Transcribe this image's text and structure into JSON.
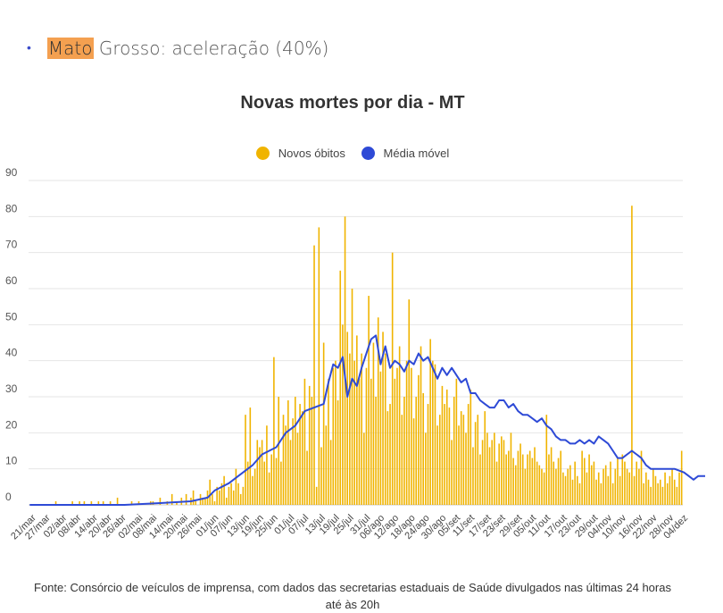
{
  "header": {
    "bullet": "•",
    "highlight": "Mato",
    "rest": " Grosso: aceleração (40%)"
  },
  "chart_data": {
    "type": "bar",
    "title": "Novas mortes por dia - MT",
    "ylim": [
      0,
      90
    ],
    "yticks": [
      0,
      10,
      20,
      30,
      40,
      50,
      60,
      70,
      80,
      90
    ],
    "grid": true,
    "legend_placement": "top-center",
    "xlabel": "",
    "ylabel": "",
    "x_tick_labels": [
      "21/mar",
      "27/mar",
      "02/abr",
      "08/abr",
      "14/abr",
      "20/abr",
      "26/abr",
      "02/mai",
      "08/mai",
      "14/mai",
      "20/mai",
      "26/mai",
      "01/jun",
      "07/jun",
      "13/jun",
      "19/jun",
      "25/jun",
      "01/jul",
      "07/jul",
      "13/jul",
      "19/jul",
      "25/jul",
      "31/jul",
      "06/ago",
      "12/ago",
      "18/ago",
      "24/ago",
      "30/ago",
      "05/set",
      "11/set",
      "17/set",
      "23/set",
      "29/set",
      "05/out",
      "11/out",
      "17/out",
      "23/out",
      "29/out",
      "04/nov",
      "10/nov",
      "16/nov",
      "22/nov",
      "28/nov",
      "04/dez"
    ],
    "series": [
      {
        "name": "Novos óbitos",
        "kind": "bar",
        "color": "#f0b400",
        "values": [
          0,
          0,
          0,
          0,
          0,
          0,
          0,
          0,
          0,
          0,
          0,
          1,
          0,
          0,
          0,
          0,
          0,
          0,
          1,
          0,
          0,
          1,
          0,
          1,
          0,
          0,
          1,
          0,
          0,
          1,
          0,
          1,
          0,
          0,
          1,
          0,
          0,
          2,
          0,
          0,
          0,
          0,
          0,
          1,
          0,
          0,
          1,
          0,
          0,
          0,
          0,
          1,
          1,
          0,
          0,
          2,
          0,
          0,
          1,
          0,
          3,
          0,
          1,
          0,
          2,
          0,
          3,
          0,
          2,
          4,
          1,
          0,
          3,
          2,
          2,
          4,
          7,
          3,
          1,
          5,
          4,
          6,
          8,
          2,
          5,
          6,
          4,
          10,
          6,
          3,
          5,
          25,
          12,
          27,
          8,
          10,
          18,
          16,
          18,
          12,
          22,
          9,
          14,
          41,
          13,
          30,
          12,
          25,
          22,
          29,
          18,
          24,
          30,
          20,
          28,
          26,
          35,
          15,
          33,
          30,
          72,
          5,
          77,
          16,
          45,
          22,
          35,
          18,
          38,
          40,
          29,
          65,
          50,
          80,
          48,
          42,
          60,
          40,
          47,
          35,
          42,
          20,
          38,
          58,
          35,
          45,
          30,
          52,
          37,
          48,
          42,
          26,
          28,
          70,
          35,
          38,
          44,
          25,
          30,
          40,
          57,
          38,
          24,
          30,
          36,
          44,
          31,
          20,
          28,
          46,
          40,
          39,
          22,
          25,
          33,
          28,
          32,
          27,
          18,
          30,
          35,
          22,
          26,
          25,
          20,
          28,
          32,
          16,
          23,
          25,
          14,
          18,
          26,
          20,
          16,
          18,
          20,
          12,
          17,
          19,
          18,
          14,
          15,
          20,
          13,
          11,
          15,
          17,
          14,
          10,
          14,
          15,
          13,
          16,
          12,
          11,
          10,
          9,
          25,
          14,
          16,
          12,
          10,
          13,
          15,
          9,
          8,
          10,
          11,
          7,
          12,
          8,
          6,
          15,
          13,
          9,
          14,
          11,
          12,
          7,
          9,
          6,
          10,
          11,
          8,
          12,
          6,
          10,
          13,
          8,
          14,
          12,
          10,
          9,
          83,
          8,
          12,
          10,
          15,
          6,
          9,
          7,
          5,
          10,
          8,
          6,
          7,
          5,
          9,
          6,
          8,
          10,
          7,
          5,
          9,
          15
        ]
      },
      {
        "name": "Média móvel",
        "kind": "line",
        "color": "#2e4ad6",
        "points": [
          [
            0,
            0
          ],
          [
            40,
            0
          ],
          [
            55,
            0.5
          ],
          [
            68,
            1
          ],
          [
            75,
            2
          ],
          [
            78,
            4
          ],
          [
            84,
            6
          ],
          [
            88,
            8
          ],
          [
            94,
            11
          ],
          [
            98,
            14
          ],
          [
            104,
            16
          ],
          [
            108,
            20
          ],
          [
            112,
            22
          ],
          [
            116,
            26
          ],
          [
            120,
            27
          ],
          [
            124,
            28
          ],
          [
            126,
            34
          ],
          [
            128,
            39
          ],
          [
            130,
            38
          ],
          [
            132,
            41
          ],
          [
            134,
            30
          ],
          [
            136,
            35
          ],
          [
            138,
            33
          ],
          [
            140,
            38
          ],
          [
            144,
            46
          ],
          [
            146,
            47
          ],
          [
            148,
            39
          ],
          [
            150,
            44
          ],
          [
            152,
            38
          ],
          [
            154,
            40
          ],
          [
            156,
            39
          ],
          [
            158,
            37
          ],
          [
            160,
            40
          ],
          [
            162,
            39
          ],
          [
            164,
            42
          ],
          [
            166,
            40
          ],
          [
            168,
            41
          ],
          [
            170,
            38
          ],
          [
            172,
            35
          ],
          [
            174,
            38
          ],
          [
            176,
            36
          ],
          [
            178,
            38
          ],
          [
            180,
            36
          ],
          [
            182,
            34
          ],
          [
            184,
            35
          ],
          [
            186,
            31
          ],
          [
            188,
            31
          ],
          [
            190,
            29
          ],
          [
            192,
            28
          ],
          [
            194,
            27
          ],
          [
            196,
            27
          ],
          [
            198,
            29
          ],
          [
            200,
            29
          ],
          [
            202,
            27
          ],
          [
            204,
            28
          ],
          [
            206,
            26
          ],
          [
            208,
            25
          ],
          [
            210,
            25
          ],
          [
            212,
            24
          ],
          [
            214,
            23
          ],
          [
            216,
            24
          ],
          [
            218,
            22
          ],
          [
            220,
            21
          ],
          [
            222,
            19
          ],
          [
            224,
            18
          ],
          [
            226,
            18
          ],
          [
            228,
            17
          ],
          [
            230,
            17
          ],
          [
            232,
            18
          ],
          [
            234,
            17
          ],
          [
            236,
            18
          ],
          [
            238,
            17
          ],
          [
            240,
            19
          ],
          [
            242,
            18
          ],
          [
            244,
            17
          ],
          [
            246,
            15
          ],
          [
            248,
            13
          ],
          [
            250,
            13
          ],
          [
            252,
            14
          ],
          [
            254,
            15
          ],
          [
            256,
            14
          ],
          [
            258,
            13
          ],
          [
            260,
            11
          ],
          [
            262,
            10
          ],
          [
            264,
            10
          ],
          [
            272,
            10
          ],
          [
            276,
            9
          ],
          [
            278,
            8
          ],
          [
            280,
            7
          ],
          [
            282,
            8
          ],
          [
            284,
            8
          ],
          [
            286,
            8
          ],
          [
            288,
            8
          ],
          [
            290,
            8
          ],
          [
            292,
            8
          ],
          [
            294,
            8
          ],
          [
            296,
            18
          ],
          [
            298,
            19
          ],
          [
            300,
            18
          ],
          [
            302,
            18
          ],
          [
            304,
            6
          ],
          [
            306,
            6
          ],
          [
            308,
            6
          ],
          [
            310,
            7
          ],
          [
            312,
            6
          ],
          [
            314,
            5
          ],
          [
            316,
            6
          ],
          [
            318,
            6
          ],
          [
            320,
            7
          ],
          [
            322,
            6
          ],
          [
            324,
            8
          ]
        ]
      }
    ]
  },
  "source": {
    "line1": "Fonte: Consórcio de veículos de imprensa, com dados das secretarias estaduais de Saúde divulgados nas últimas 24 horas",
    "line2": "até às 20h"
  }
}
